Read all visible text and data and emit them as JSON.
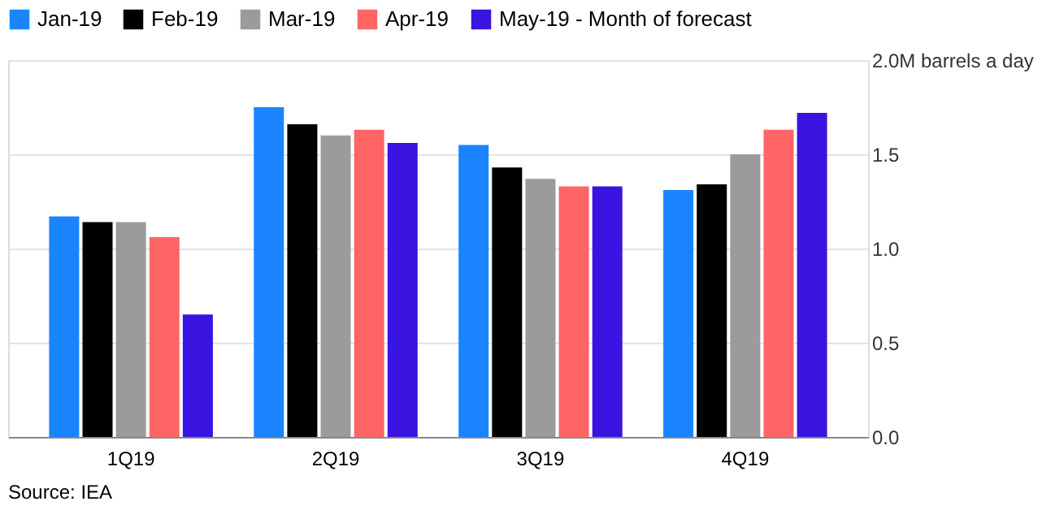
{
  "chart_data": {
    "type": "bar",
    "categories": [
      "1Q19",
      "2Q19",
      "3Q19",
      "4Q19"
    ],
    "series": [
      {
        "name": "Jan-19",
        "color": "#1a84ff",
        "values": [
          1.17,
          1.75,
          1.55,
          1.31
        ]
      },
      {
        "name": "Feb-19",
        "color": "#000000",
        "values": [
          1.14,
          1.66,
          1.43,
          1.34
        ]
      },
      {
        "name": "Mar-19",
        "color": "#9b9b9b",
        "values": [
          1.14,
          1.6,
          1.37,
          1.5
        ]
      },
      {
        "name": "Apr-19",
        "color": "#ff6565",
        "values": [
          1.06,
          1.63,
          1.33,
          1.63
        ]
      },
      {
        "name": "May-19 - Month of forecast",
        "color": "#3a14e0",
        "values": [
          0.65,
          1.56,
          1.33,
          1.72
        ]
      }
    ],
    "ylim": [
      0,
      2
    ],
    "yticks": [
      {
        "value": 0,
        "label": "0.0"
      },
      0.5,
      {
        "value": 1,
        "label": "1.0"
      },
      1.5,
      {
        "value": 2,
        "label": "2.0M barrels a day"
      }
    ],
    "grid": "y",
    "legend": "top left",
    "annotations": [
      "Source: IEA"
    ]
  }
}
